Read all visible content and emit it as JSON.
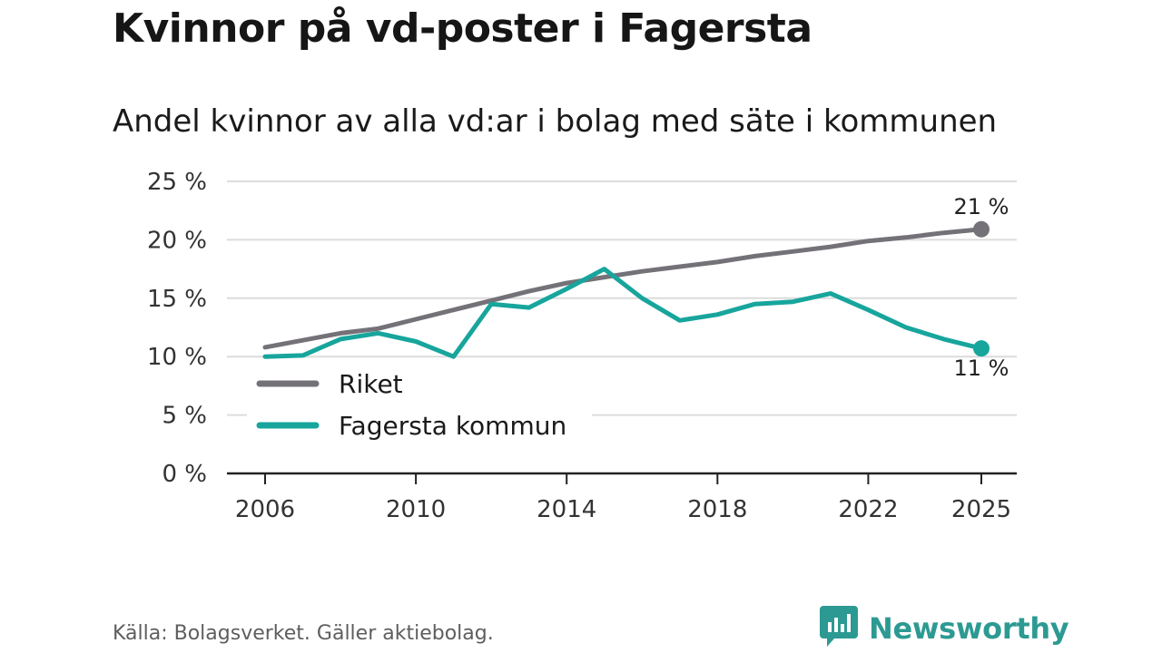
{
  "header": {
    "title": "Kvinnor på vd-poster i Fagersta",
    "subtitle": "Andel kvinnor av alla vd:ar i bolag med säte i kommunen"
  },
  "footer": {
    "source": "Källa: Bolagsverket. Gäller aktiebolag.",
    "brand": "Newsworthy"
  },
  "colors": {
    "riket": "#747278",
    "fagersta": "#17a59c",
    "grid": "#dcdcdc",
    "axis": "#222222",
    "brand": "#2c9a92"
  },
  "chart_data": {
    "type": "line",
    "title": "Kvinnor på vd-poster i Fagersta",
    "subtitle": "Andel kvinnor av alla vd:ar i bolag med säte i kommunen",
    "xlabel": "",
    "ylabel": "",
    "x": [
      2006,
      2007,
      2008,
      2009,
      2010,
      2011,
      2012,
      2013,
      2014,
      2015,
      2016,
      2017,
      2018,
      2019,
      2020,
      2021,
      2022,
      2023,
      2024,
      2025
    ],
    "xlim": [
      2006,
      2025
    ],
    "ylim": [
      0,
      25
    ],
    "x_ticks": [
      2006,
      2010,
      2014,
      2018,
      2022,
      2025
    ],
    "x_tick_labels": [
      "2006",
      "2010",
      "2014",
      "2018",
      "2022",
      "2025"
    ],
    "y_ticks": [
      0,
      5,
      10,
      15,
      20,
      25
    ],
    "y_tick_labels": [
      "0 %",
      "5 %",
      "10 %",
      "15 %",
      "20 %",
      "25 %"
    ],
    "grid": true,
    "legend_position": "bottom-left",
    "series": [
      {
        "name": "Riket",
        "color": "#747278",
        "values": [
          10.8,
          11.4,
          12.0,
          12.4,
          13.2,
          14.0,
          14.8,
          15.6,
          16.3,
          16.8,
          17.3,
          17.7,
          18.1,
          18.6,
          19.0,
          19.4,
          19.9,
          20.2,
          20.6,
          20.9
        ],
        "end_label": "21 %"
      },
      {
        "name": "Fagersta kommun",
        "color": "#17a59c",
        "values": [
          10.0,
          10.1,
          11.5,
          12.0,
          11.3,
          10.0,
          14.5,
          14.2,
          15.8,
          17.5,
          15.0,
          13.1,
          13.6,
          14.5,
          14.7,
          15.4,
          14.0,
          12.5,
          11.5,
          10.7
        ],
        "end_label": "11 %"
      }
    ]
  }
}
